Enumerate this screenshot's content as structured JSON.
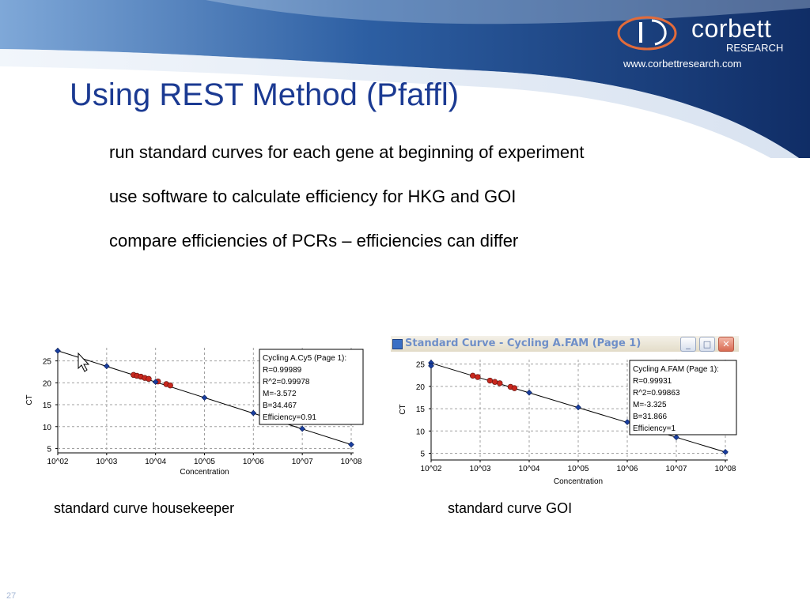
{
  "brand": {
    "name": "corbett",
    "sub": "RESEARCH",
    "url": "www.corbettresearch.com"
  },
  "slide": {
    "title": "Using REST Method (Pfaffl)",
    "bullets": [
      "run standard curves for each gene at beginning of experiment",
      " use software to calculate efficiency for HKG and GOI",
      "compare efficiencies of PCRs – efficiencies can differ"
    ],
    "captions": {
      "left": "standard curve housekeeper",
      "right": "standard curve GOI"
    },
    "page_number": "27"
  },
  "window": {
    "title": "Standard Curve - Cycling A.FAM (Page 1)",
    "minimize_glyph": "_",
    "maximize_glyph": "□",
    "close_glyph": "✕"
  },
  "colors": {
    "title": "#1b3a92",
    "header_dark": "#1f3f7a",
    "point_fill": "#1a3fa0",
    "sample_fill": "#c8281e"
  },
  "chart_data": [
    {
      "type": "scatter",
      "xlabel": "Concentration",
      "ylabel": "CT",
      "xscale": "log",
      "x_ticks": [
        "10^02",
        "10^03",
        "10^04",
        "10^05",
        "10^06",
        "10^07",
        "10^08"
      ],
      "y_ticks": [
        "5",
        "10",
        "15",
        "20",
        "25"
      ],
      "xlim": [
        2,
        8
      ],
      "ylim": [
        4,
        28
      ],
      "grid": true,
      "legend": [
        "Cycling A.Cy5 (Page 1):",
        "R=0.99989",
        "R^2=0.99978",
        "M=-3.572",
        "B=34.467",
        "Efficiency=0.91"
      ],
      "legend_position": "top-right",
      "fit": {
        "slope": -3.572,
        "intercept": 34.467
      },
      "standards": [
        {
          "log_conc": 2,
          "ct": 27.3
        },
        {
          "log_conc": 3,
          "ct": 23.8
        },
        {
          "log_conc": 4,
          "ct": 20.2
        },
        {
          "log_conc": 5,
          "ct": 16.6
        },
        {
          "log_conc": 6,
          "ct": 13.1
        },
        {
          "log_conc": 7,
          "ct": 9.5
        },
        {
          "log_conc": 8,
          "ct": 5.9
        }
      ],
      "samples": [
        {
          "log_conc": 3.55,
          "ct": 21.8
        },
        {
          "log_conc": 3.62,
          "ct": 21.6
        },
        {
          "log_conc": 3.7,
          "ct": 21.4
        },
        {
          "log_conc": 3.78,
          "ct": 21.1
        },
        {
          "log_conc": 3.86,
          "ct": 20.9
        },
        {
          "log_conc": 4.05,
          "ct": 20.3
        },
        {
          "log_conc": 4.22,
          "ct": 19.7
        },
        {
          "log_conc": 4.3,
          "ct": 19.4
        }
      ]
    },
    {
      "type": "scatter",
      "xlabel": "Concentration",
      "ylabel": "CT",
      "xscale": "log",
      "x_ticks": [
        "10^02",
        "10^03",
        "10^04",
        "10^05",
        "10^06",
        "10^07",
        "10^08"
      ],
      "y_ticks": [
        "5",
        "10",
        "15",
        "20",
        "25"
      ],
      "xlim": [
        2,
        8
      ],
      "ylim": [
        3.5,
        26
      ],
      "grid": true,
      "legend": [
        "Cycling A.FAM (Page 1):",
        "R=0.99931",
        "R^2=0.99863",
        "M=-3.325",
        "B=31.866",
        "Efficiency=1"
      ],
      "legend_position": "top-right",
      "fit": {
        "slope": -3.325,
        "intercept": 31.866
      },
      "standards": [
        {
          "log_conc": 2,
          "ct": 25.3
        },
        {
          "log_conc": 2,
          "ct": 24.6
        },
        {
          "log_conc": 4,
          "ct": 18.6
        },
        {
          "log_conc": 5,
          "ct": 15.3
        },
        {
          "log_conc": 6,
          "ct": 12.0
        },
        {
          "log_conc": 7,
          "ct": 8.6
        },
        {
          "log_conc": 8,
          "ct": 5.3
        }
      ],
      "samples": [
        {
          "log_conc": 2.85,
          "ct": 22.4
        },
        {
          "log_conc": 2.95,
          "ct": 22.1
        },
        {
          "log_conc": 3.2,
          "ct": 21.3
        },
        {
          "log_conc": 3.3,
          "ct": 21.0
        },
        {
          "log_conc": 3.4,
          "ct": 20.7
        },
        {
          "log_conc": 3.62,
          "ct": 19.9
        },
        {
          "log_conc": 3.7,
          "ct": 19.6
        }
      ]
    }
  ]
}
